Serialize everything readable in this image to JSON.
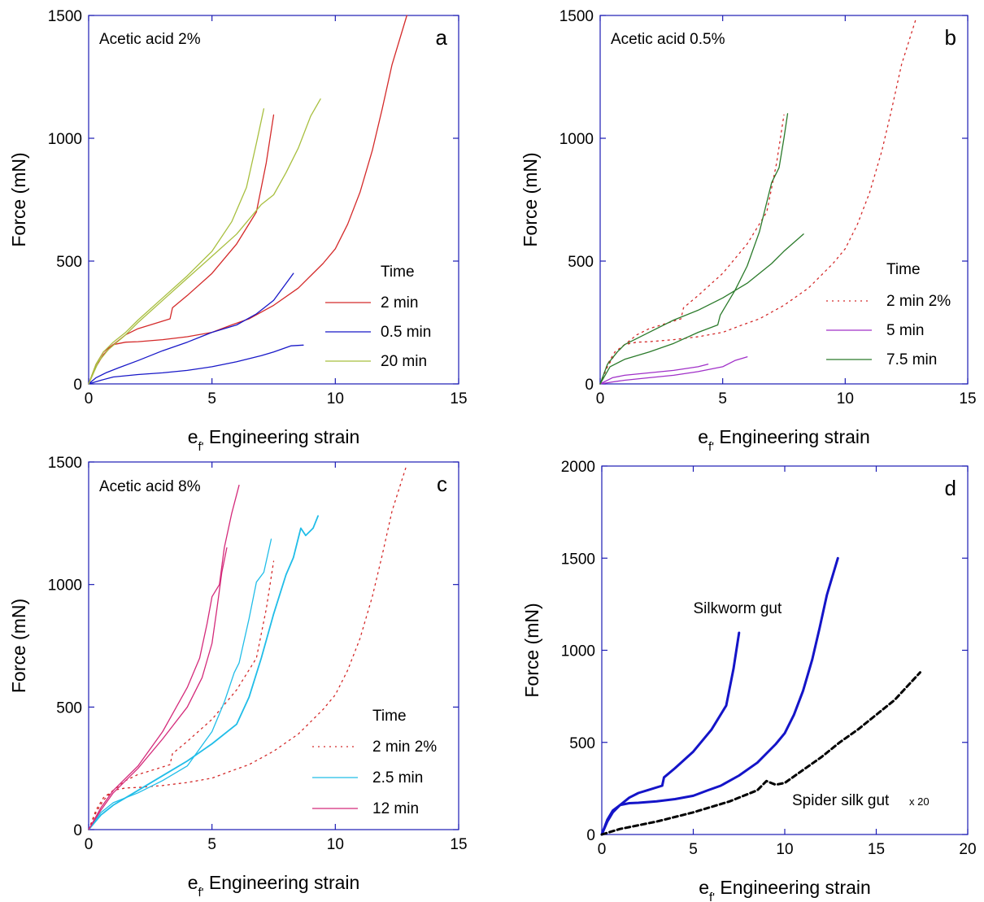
{
  "chart_data": [
    {
      "type": "line",
      "panel": "a",
      "title": "Acetic acid 2%",
      "xlabel": "e",
      "xlabel_sub": "f'",
      "xlabel_rest": " Engineering strain",
      "ylabel": "Force (mN)",
      "xlim": [
        0,
        15
      ],
      "ylim": [
        0,
        1500
      ],
      "xticks": [
        0,
        5,
        10,
        15
      ],
      "yticks": [
        0,
        500,
        1000,
        1500
      ],
      "legend_title": "Time",
      "legend_position": "bottom-right",
      "series": [
        {
          "name": "2 min",
          "color": "#d42a2a",
          "style": "solid",
          "width": 1.3,
          "x": [
            0,
            0.3,
            0.6,
            1,
            1.5,
            2,
            3,
            4,
            5,
            5.8,
            6.5,
            7.5,
            8.5,
            9.5,
            10,
            10.5,
            11,
            11.5,
            11.9,
            12.3,
            12.9
          ],
          "y": [
            0,
            80,
            130,
            160,
            170,
            172,
            180,
            192,
            210,
            240,
            265,
            320,
            390,
            490,
            550,
            650,
            780,
            950,
            1120,
            1300,
            1500
          ]
        },
        {
          "name": "2 min",
          "color": "#d42a2a",
          "style": "solid",
          "width": 1.3,
          "x": [
            0,
            0.3,
            0.6,
            1,
            1.5,
            2,
            2.5,
            3.3,
            3.4,
            4,
            5,
            6,
            6.8,
            7.2,
            7.5
          ],
          "y": [
            0,
            70,
            120,
            160,
            200,
            225,
            240,
            265,
            310,
            360,
            450,
            570,
            700,
            900,
            1095
          ]
        },
        {
          "name": "0.5 min",
          "color": "#1818c8",
          "style": "solid",
          "width": 1.3,
          "x": [
            0,
            0.3,
            0.7,
            1.2,
            2,
            3,
            4,
            5,
            6,
            6.8,
            7.5,
            8.3
          ],
          "y": [
            0,
            25,
            45,
            65,
            95,
            135,
            170,
            210,
            240,
            285,
            340,
            450
          ]
        },
        {
          "name": "0.5 min",
          "color": "#1818c8",
          "style": "solid",
          "width": 1.3,
          "x": [
            0,
            0.5,
            1,
            2,
            3,
            4,
            5,
            6,
            7,
            7.5,
            8.2,
            8.7
          ],
          "y": [
            0,
            15,
            28,
            38,
            45,
            55,
            70,
            90,
            115,
            130,
            155,
            158
          ]
        },
        {
          "name": "20 min",
          "color": "#a8bf3f",
          "style": "solid",
          "width": 1.3,
          "x": [
            0,
            0.3,
            0.6,
            1,
            1.5,
            2,
            3,
            4,
            5,
            5.8,
            6.4,
            6.8,
            7.1
          ],
          "y": [
            0,
            80,
            130,
            170,
            210,
            260,
            350,
            440,
            540,
            660,
            800,
            980,
            1120
          ]
        },
        {
          "name": "20 min",
          "color": "#a8bf3f",
          "style": "solid",
          "width": 1.3,
          "x": [
            0,
            0.4,
            0.8,
            1.5,
            2,
            3,
            4,
            5,
            6,
            7,
            7.5,
            8,
            8.5,
            9,
            9.4
          ],
          "y": [
            0,
            90,
            140,
            200,
            250,
            340,
            430,
            520,
            610,
            730,
            770,
            860,
            960,
            1090,
            1160
          ]
        }
      ],
      "legend_entries": [
        {
          "label": "2 min",
          "color": "#d42a2a",
          "style": "solid"
        },
        {
          "label": "0.5 min",
          "color": "#1818c8",
          "style": "solid"
        },
        {
          "label": "20 min",
          "color": "#a8bf3f",
          "style": "solid"
        }
      ]
    },
    {
      "type": "line",
      "panel": "b",
      "title": "Acetic acid 0.5%",
      "xlabel": "e",
      "xlabel_sub": "f'",
      "xlabel_rest": " Engineering strain",
      "ylabel": "Force (mN)",
      "xlim": [
        0,
        15
      ],
      "ylim": [
        0,
        1500
      ],
      "xticks": [
        0,
        5,
        10,
        15
      ],
      "yticks": [
        0,
        500,
        1000,
        1500
      ],
      "legend_title": "Time",
      "legend_position": "bottom-right",
      "series": [
        {
          "name": "2 min 2%",
          "color": "#d42a2a",
          "style": "dotted",
          "width": 1.3,
          "x": [
            0,
            0.3,
            0.6,
            1,
            1.5,
            2,
            3,
            4,
            5,
            5.8,
            6.5,
            7.5,
            8.5,
            9.5,
            10,
            10.5,
            11,
            11.5,
            11.9,
            12.3,
            12.9
          ],
          "y": [
            0,
            80,
            130,
            160,
            170,
            172,
            180,
            192,
            210,
            240,
            265,
            320,
            390,
            490,
            550,
            650,
            780,
            950,
            1120,
            1300,
            1490
          ]
        },
        {
          "name": "2 min 2%",
          "color": "#d42a2a",
          "style": "dotted",
          "width": 1.3,
          "x": [
            0,
            0.3,
            0.6,
            1,
            1.5,
            2,
            2.5,
            3.3,
            3.4,
            4,
            5,
            6,
            6.8,
            7.2,
            7.5
          ],
          "y": [
            0,
            70,
            120,
            160,
            200,
            225,
            240,
            265,
            310,
            360,
            450,
            570,
            700,
            900,
            1095
          ]
        },
        {
          "name": "5 min",
          "color": "#a030c8",
          "style": "solid",
          "width": 1.3,
          "x": [
            0,
            0.5,
            1,
            2,
            3,
            4,
            4.4
          ],
          "y": [
            0,
            25,
            35,
            45,
            55,
            70,
            80
          ]
        },
        {
          "name": "5 min",
          "color": "#a030c8",
          "style": "solid",
          "width": 1.3,
          "x": [
            0,
            0.5,
            1,
            2,
            3,
            4,
            5,
            5.5,
            6
          ],
          "y": [
            0,
            8,
            15,
            25,
            35,
            50,
            70,
            95,
            110
          ]
        },
        {
          "name": "7.5 min",
          "color": "#2a7a2a",
          "style": "solid",
          "width": 1.3,
          "x": [
            0,
            0.3,
            0.7,
            1,
            2,
            3,
            4,
            5,
            6,
            7,
            7.5,
            8.3
          ],
          "y": [
            0,
            80,
            130,
            160,
            210,
            260,
            300,
            350,
            410,
            490,
            540,
            610
          ]
        },
        {
          "name": "7.5 min",
          "color": "#2a7a2a",
          "style": "solid",
          "width": 1.3,
          "x": [
            0,
            0.4,
            1,
            2,
            3,
            4,
            4.8,
            4.9,
            5.5,
            6,
            6.5,
            7,
            7.3,
            7.5,
            7.65
          ],
          "y": [
            0,
            70,
            100,
            130,
            165,
            210,
            240,
            280,
            380,
            480,
            620,
            820,
            880,
            1000,
            1100
          ]
        }
      ],
      "legend_entries": [
        {
          "label": "2 min 2%",
          "color": "#d42a2a",
          "style": "dotted"
        },
        {
          "label": "5 min",
          "color": "#a030c8",
          "style": "solid"
        },
        {
          "label": "7.5 min",
          "color": "#2a7a2a",
          "style": "solid"
        }
      ]
    },
    {
      "type": "line",
      "panel": "c",
      "title": "Acetic acid 8%",
      "xlabel": "e",
      "xlabel_sub": "f'",
      "xlabel_rest": " Engineering strain",
      "ylabel": "Force (mN)",
      "xlim": [
        0,
        15
      ],
      "ylim": [
        0,
        1500
      ],
      "xticks": [
        0,
        5,
        10,
        15
      ],
      "yticks": [
        0,
        500,
        1000,
        1500
      ],
      "legend_title": "Time",
      "legend_position": "bottom-right",
      "series": [
        {
          "name": "2 min 2%",
          "color": "#d42a2a",
          "style": "dotted",
          "width": 1.3,
          "x": [
            0,
            0.3,
            0.6,
            1,
            1.5,
            2,
            3,
            4,
            5,
            5.8,
            6.5,
            7.5,
            8.5,
            9.5,
            10,
            10.5,
            11,
            11.5,
            11.9,
            12.3,
            12.9
          ],
          "y": [
            0,
            80,
            130,
            160,
            170,
            172,
            180,
            192,
            210,
            240,
            265,
            320,
            390,
            490,
            550,
            650,
            780,
            950,
            1120,
            1300,
            1490
          ]
        },
        {
          "name": "2 min 2%",
          "color": "#d42a2a",
          "style": "dotted",
          "width": 1.3,
          "x": [
            0,
            0.3,
            0.6,
            1,
            1.5,
            2,
            2.5,
            3.3,
            3.4,
            4,
            5,
            6,
            6.8,
            7.2,
            7.5
          ],
          "y": [
            0,
            70,
            120,
            160,
            200,
            225,
            240,
            265,
            310,
            360,
            450,
            570,
            700,
            900,
            1095
          ]
        },
        {
          "name": "2.5 min",
          "color": "#20bde8",
          "style": "solid",
          "width": 1.3,
          "x": [
            0,
            0.5,
            1,
            2,
            3,
            4,
            5,
            5.5,
            5.9,
            6.1,
            6.5,
            6.8,
            7.1,
            7.4
          ],
          "y": [
            0,
            70,
            110,
            150,
            200,
            260,
            400,
            520,
            640,
            680,
            860,
            1010,
            1050,
            1185
          ]
        },
        {
          "name": "2.5 min",
          "color": "#20bde8",
          "style": "solid",
          "width": 1.8,
          "x": [
            0,
            0.5,
            1,
            2,
            3,
            4,
            5,
            6,
            6.5,
            7,
            7.5,
            8,
            8.3,
            8.6,
            8.8,
            9.1,
            9.3
          ],
          "y": [
            0,
            60,
            100,
            160,
            220,
            280,
            350,
            430,
            540,
            700,
            880,
            1040,
            1110,
            1230,
            1200,
            1230,
            1280
          ]
        },
        {
          "name": "12 min",
          "color": "#d42a7a",
          "style": "solid",
          "width": 1.3,
          "x": [
            0,
            0.5,
            1,
            2,
            3,
            4,
            4.5,
            4.8,
            5,
            5.3,
            5.5,
            5.8,
            6.1
          ],
          "y": [
            0,
            90,
            160,
            260,
            400,
            580,
            700,
            840,
            950,
            1000,
            1150,
            1290,
            1405
          ]
        },
        {
          "name": "12 min",
          "color": "#d42a7a",
          "style": "solid",
          "width": 1.3,
          "x": [
            0,
            0.5,
            1,
            2,
            3,
            4,
            4.6,
            5,
            5.2,
            5.4,
            5.6
          ],
          "y": [
            0,
            80,
            150,
            250,
            370,
            500,
            620,
            760,
            900,
            1050,
            1150
          ]
        }
      ],
      "legend_entries": [
        {
          "label": "2 min 2%",
          "color": "#d42a2a",
          "style": "dotted"
        },
        {
          "label": "2.5 min",
          "color": "#20bde8",
          "style": "solid"
        },
        {
          "label": "12 min",
          "color": "#d42a7a",
          "style": "solid"
        }
      ]
    },
    {
      "type": "line",
      "panel": "d",
      "xlabel": "e",
      "xlabel_sub": "f'",
      "xlabel_rest": " Engineering strain",
      "ylabel": "Force (mN)",
      "xlim": [
        0,
        20
      ],
      "ylim": [
        0,
        2000
      ],
      "xticks": [
        0,
        5,
        10,
        15,
        20
      ],
      "yticks": [
        0,
        500,
        1000,
        1500,
        2000
      ],
      "annotations": [
        {
          "text": "Silkworm gut",
          "x": 5,
          "y": 1200
        },
        {
          "text": "Spider silk gut",
          "x": 10.4,
          "y": 160
        },
        {
          "text": "x 20",
          "x": 16.8,
          "y": 160
        }
      ],
      "series": [
        {
          "name": "Silkworm gut",
          "color": "#1414c8",
          "style": "solid",
          "width": 3,
          "x": [
            0,
            0.3,
            0.6,
            1,
            1.5,
            2,
            2.5,
            3.3,
            3.4,
            4,
            5,
            6,
            6.8,
            7.2,
            7.5
          ],
          "y": [
            0,
            70,
            120,
            160,
            200,
            225,
            240,
            265,
            310,
            360,
            450,
            570,
            700,
            900,
            1095
          ]
        },
        {
          "name": "Silkworm gut",
          "color": "#1414c8",
          "style": "solid",
          "width": 3,
          "x": [
            0,
            0.3,
            0.6,
            1,
            1.5,
            2,
            3,
            4,
            5,
            5.8,
            6.5,
            7.5,
            8.5,
            9.5,
            10,
            10.5,
            11,
            11.5,
            11.9,
            12.3,
            12.9
          ],
          "y": [
            0,
            80,
            130,
            160,
            170,
            172,
            180,
            192,
            210,
            240,
            265,
            320,
            390,
            490,
            550,
            650,
            780,
            950,
            1120,
            1300,
            1500
          ]
        },
        {
          "name": "Spider silk gut",
          "color": "#000000",
          "style": "dashed",
          "width": 3,
          "x": [
            0,
            1,
            3,
            5,
            7,
            8.5,
            9,
            9.5,
            10,
            11,
            12,
            13,
            14,
            15,
            16,
            17.4
          ],
          "y": [
            0,
            30,
            70,
            120,
            180,
            240,
            290,
            270,
            280,
            350,
            420,
            500,
            570,
            650,
            730,
            880
          ]
        }
      ]
    }
  ]
}
